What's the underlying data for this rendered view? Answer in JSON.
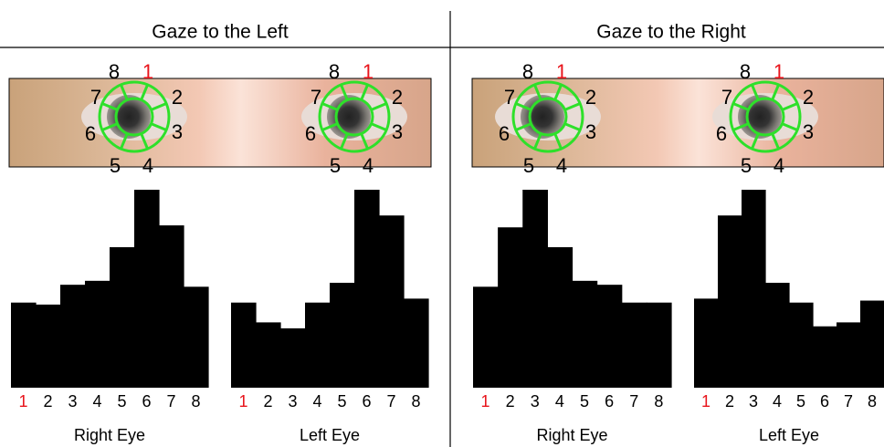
{
  "panels": [
    {
      "title": "Gaze to the Left"
    },
    {
      "title": "Gaze to the Right"
    }
  ],
  "eye_labels": [
    "1",
    "2",
    "3",
    "4",
    "5",
    "6",
    "7",
    "8"
  ],
  "eye_label_colors": [
    "#e8141b",
    "#000000",
    "#000000",
    "#000000",
    "#000000",
    "#000000",
    "#000000",
    "#000000"
  ],
  "chart_data": [
    {
      "type": "bar",
      "xlabel": "Right Eye",
      "categories": [
        "1",
        "2",
        "3",
        "4",
        "5",
        "6",
        "7",
        "8"
      ],
      "values": [
        43,
        42,
        52,
        54,
        71,
        100,
        82,
        51
      ],
      "ylim": [
        0,
        100
      ],
      "color": "#000000",
      "tick_label_colors": [
        "#e8141b",
        "#000000",
        "#000000",
        "#000000",
        "#000000",
        "#000000",
        "#000000",
        "#000000"
      ]
    },
    {
      "type": "bar",
      "xlabel": "Left Eye",
      "categories": [
        "1",
        "2",
        "3",
        "4",
        "5",
        "6",
        "7",
        "8"
      ],
      "values": [
        43,
        33,
        30,
        43,
        53,
        100,
        87,
        45
      ],
      "ylim": [
        0,
        100
      ],
      "color": "#000000",
      "tick_label_colors": [
        "#e8141b",
        "#000000",
        "#000000",
        "#000000",
        "#000000",
        "#000000",
        "#000000",
        "#000000"
      ]
    },
    {
      "type": "bar",
      "xlabel": "Right Eye",
      "categories": [
        "1",
        "2",
        "3",
        "4",
        "5",
        "6",
        "7",
        "8"
      ],
      "values": [
        51,
        81,
        100,
        71,
        54,
        52,
        43,
        43
      ],
      "ylim": [
        0,
        100
      ],
      "color": "#000000",
      "tick_label_colors": [
        "#e8141b",
        "#000000",
        "#000000",
        "#000000",
        "#000000",
        "#000000",
        "#000000",
        "#000000"
      ]
    },
    {
      "type": "bar",
      "xlabel": "Left Eye",
      "categories": [
        "1",
        "2",
        "3",
        "4",
        "5",
        "6",
        "7",
        "8"
      ],
      "values": [
        45,
        87,
        100,
        53,
        43,
        31,
        33,
        44
      ],
      "ylim": [
        0,
        100
      ],
      "color": "#000000",
      "tick_label_colors": [
        "#e8141b",
        "#000000",
        "#000000",
        "#000000",
        "#000000",
        "#000000",
        "#000000",
        "#000000"
      ]
    }
  ]
}
